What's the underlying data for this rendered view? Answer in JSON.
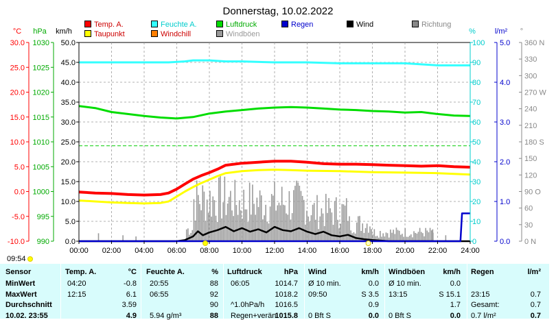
{
  "title": "Donnerstag, 10.02.2022",
  "legend": [
    {
      "label": "Temp. A.",
      "color": "#ff0000"
    },
    {
      "label": "Feuchte A.",
      "color": "#33ffff"
    },
    {
      "label": "Luftdruck",
      "color": "#00dd00"
    },
    {
      "label": "Regen",
      "color": "#0000cc"
    },
    {
      "label": "Wind",
      "color": "#000000"
    },
    {
      "label": "Richtung",
      "color": "#888888"
    },
    {
      "label": "Taupunkt",
      "color": "#ffff00"
    },
    {
      "label": "Windchill",
      "color": "#ff7f00"
    },
    {
      "label": "Windböen",
      "color": "#999999"
    }
  ],
  "units": {
    "temp": "°C",
    "press": "hPa",
    "wind": "km/h",
    "hum": "%",
    "rain": "l/m²",
    "dir": "°"
  },
  "chart_data": {
    "type": "line",
    "x_ticks": [
      "00:00",
      "02:00",
      "04:00",
      "06:00",
      "08:00",
      "10:00",
      "12:00",
      "14:00",
      "16:00",
      "18:00",
      "20:00",
      "22:00",
      "24:00"
    ],
    "axes": {
      "temp": {
        "ticks": [
          "30.0",
          "25.0",
          "20.0",
          "15.0",
          "10.0",
          "5.0",
          "0.0",
          "-5.0",
          "-10.0"
        ],
        "range": [
          -10,
          30
        ],
        "color": "#ff0000"
      },
      "press": {
        "ticks": [
          "1030",
          "1025",
          "1020",
          "1015",
          "1010",
          "1005",
          "1000",
          "995",
          "990"
        ],
        "range": [
          990,
          1030
        ],
        "color": "#00aa00"
      },
      "wind": {
        "ticks": [
          "50.0",
          "45.0",
          "40.0",
          "35.0",
          "30.0",
          "25.0",
          "20.0",
          "15.0",
          "10.0",
          "5.0",
          "0.0"
        ],
        "range": [
          0,
          50
        ],
        "color": "#000000"
      },
      "hum": {
        "ticks": [
          "100",
          "90",
          "80",
          "70",
          "60",
          "50",
          "40",
          "30",
          "20",
          "10",
          "0"
        ],
        "range": [
          0,
          100
        ],
        "color": "#00cccc"
      },
      "rain": {
        "ticks": [
          "5.0",
          "4.0",
          "3.0",
          "2.0",
          "1.0",
          "0.0"
        ],
        "range": [
          0,
          5
        ],
        "color": "#0000cc"
      },
      "dir": {
        "ticks": [
          "360 N",
          "330",
          "300",
          "270 W",
          "240",
          "210",
          "180 S",
          "150",
          "120",
          "90 O",
          "60",
          "30",
          "0 N"
        ],
        "range": [
          0,
          360
        ],
        "color": "#888888"
      }
    },
    "series": [
      {
        "name": "Feuchte A.",
        "axis": "hum",
        "color": "#33ffff",
        "x": [
          0,
          2,
          4,
          5.5,
          6.5,
          7,
          8,
          9,
          10,
          12,
          14,
          16,
          18,
          20,
          21,
          22,
          24
        ],
        "y": [
          90,
          90,
          90,
          90,
          90.5,
          91,
          91,
          90.5,
          90.5,
          90,
          90,
          89.5,
          89.5,
          89.5,
          89,
          88.5,
          88.5
        ]
      },
      {
        "name": "Luftdruck",
        "axis": "press",
        "color": "#00dd00",
        "x": [
          0,
          1,
          2,
          3,
          4,
          5,
          6,
          7,
          8,
          9,
          10,
          11,
          12,
          13,
          14,
          15,
          16,
          17,
          18,
          19,
          20,
          21,
          22,
          23,
          24
        ],
        "y": [
          1017.2,
          1016.8,
          1016,
          1015.6,
          1015.2,
          1014.9,
          1014.7,
          1015,
          1015.7,
          1016.1,
          1016.4,
          1016.7,
          1016.9,
          1017,
          1016.9,
          1016.7,
          1016.5,
          1016.4,
          1016.2,
          1016.1,
          1015.9,
          1016,
          1015.6,
          1015.3,
          1015.2
        ]
      },
      {
        "name": "Temp. A.",
        "axis": "temp",
        "color": "#ff0000",
        "x": [
          0,
          1,
          2,
          3,
          4,
          5,
          5.5,
          6,
          6.5,
          7,
          7.5,
          8,
          8.5,
          9,
          10,
          11,
          12,
          13,
          14,
          15,
          16,
          17,
          18,
          19,
          20,
          21,
          22,
          23,
          24
        ],
        "y": [
          -0.1,
          -0.3,
          -0.4,
          -0.6,
          -0.7,
          -0.6,
          -0.3,
          0.5,
          1.5,
          2.5,
          3.2,
          3.8,
          4.5,
          5.3,
          5.7,
          5.9,
          6.1,
          6.1,
          5.9,
          5.6,
          5.5,
          5.5,
          5.4,
          5.3,
          5.2,
          5.1,
          5.2,
          5.0,
          4.9
        ]
      },
      {
        "name": "Taupunkt",
        "axis": "temp",
        "color": "#ffff00",
        "x": [
          0,
          1,
          2,
          3,
          4,
          5,
          5.5,
          6,
          6.5,
          7,
          7.5,
          8,
          8.5,
          9,
          10,
          11,
          12,
          13,
          14,
          16,
          18,
          20,
          22,
          24
        ],
        "y": [
          -1.8,
          -2,
          -2.2,
          -2.3,
          -2.4,
          -2.3,
          -2,
          -1,
          0,
          0.9,
          1.7,
          2.4,
          3.1,
          3.7,
          4.1,
          4.3,
          4.4,
          4.3,
          4.2,
          4.1,
          3.9,
          3.8,
          3.7,
          3.4
        ]
      },
      {
        "name": "Wind",
        "axis": "wind",
        "color": "#000000",
        "x": [
          0,
          1,
          2,
          3,
          4,
          5,
          6,
          6.5,
          7,
          7.3,
          7.6,
          8,
          8.5,
          9,
          9.5,
          10,
          10.5,
          11,
          11.5,
          12,
          12.5,
          13,
          13.5,
          14,
          14.5,
          15,
          15.5,
          16,
          16.5,
          17,
          17.5,
          18,
          19,
          20,
          21,
          22,
          23,
          24
        ],
        "y": [
          0,
          0,
          0,
          0,
          0,
          0,
          0,
          0.3,
          1.2,
          2.5,
          1.5,
          2.2,
          2.8,
          3.6,
          2.5,
          3.3,
          2.4,
          3.0,
          2.2,
          3.6,
          2.8,
          2.5,
          3.3,
          2.4,
          1.8,
          2.4,
          1.5,
          1.2,
          1.6,
          0.8,
          0.5,
          0.3,
          0,
          0,
          0,
          0,
          0,
          0
        ]
      },
      {
        "name": "Regen",
        "axis": "rain",
        "color": "#0000cc",
        "x": [
          0,
          22.5,
          23,
          23.4,
          23.5,
          24
        ],
        "y": [
          0,
          0,
          0,
          0,
          0.7,
          0.7
        ]
      }
    ]
  },
  "clock_time": "09:54",
  "stats": {
    "headers": {
      "sensor": "Sensor",
      "temp": "Temp. A.",
      "temp_u": "°C",
      "hum": "Feuchte A.",
      "hum_u": "%",
      "press": "Luftdruck",
      "press_u": "hPa",
      "wind": "Wind",
      "wind_u": "km/h",
      "gust": "Windböen",
      "gust_u": "km/h",
      "rain": "Regen",
      "rain_u": "l/m²"
    },
    "rows": [
      {
        "label": "MinWert",
        "t_time": "04:20",
        "t_val": "-0.8",
        "h_time": "20:55",
        "h_val": "88",
        "p_time": "06:05",
        "p_val": "1014.7",
        "w_time": "Ø 10 min.",
        "w_val": "0.0",
        "g_time": "Ø 10 min.",
        "g_val": "0.0",
        "r_time": "",
        "r_val": ""
      },
      {
        "label": "MaxWert",
        "t_time": "12:15",
        "t_val": "6.1",
        "h_time": "06:55",
        "h_val": "92",
        "p_time": "",
        "p_val": "1018.2",
        "w_time": "09:50",
        "w_val": "S 3.5",
        "g_time": "13:15",
        "g_val": "S 15.1",
        "r_time": "23:15",
        "r_val": "0.7"
      },
      {
        "label": "Durchschnitt",
        "t_time": "",
        "t_val": "3.59",
        "h_time": "",
        "h_val": "90",
        "p_time": "^1.0hPa/h",
        "p_val": "1016.5",
        "w_time": "",
        "w_val": "0.9",
        "g_time": "",
        "g_val": "1.7",
        "r_time": "Gesamt:",
        "r_val": "0.7"
      },
      {
        "label": "10.02. 23:55",
        "t_time": "",
        "t_val": "4.9",
        "h_time": "5.94 g/m³",
        "h_val": "88",
        "p_time": "Regen+verän",
        "p_val": "1015.8",
        "w_time": "0 Bft S",
        "w_val": "0.0",
        "g_time": "0 Bft S",
        "g_val": "0.0",
        "r_time": "0.7 l/m²",
        "r_val": "0.7"
      }
    ]
  }
}
